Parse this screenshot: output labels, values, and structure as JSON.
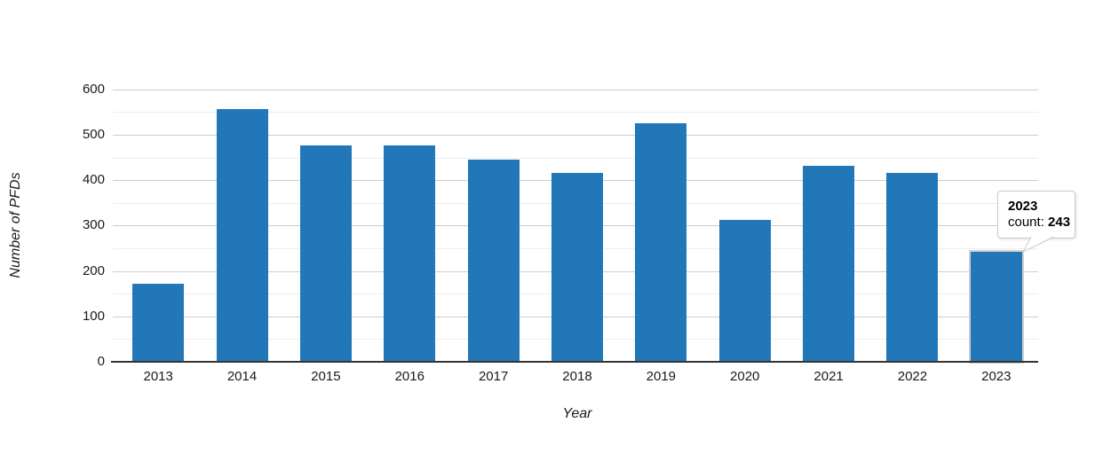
{
  "chart": {
    "y_axis_title": "Number of PFDs",
    "x_axis_title": "Year",
    "tooltip": {
      "title": "2023",
      "label": "count:",
      "value": "243"
    }
  },
  "chart_data": {
    "type": "bar",
    "categories": [
      "2013",
      "2014",
      "2015",
      "2016",
      "2017",
      "2018",
      "2019",
      "2020",
      "2021",
      "2022",
      "2023"
    ],
    "values": [
      172,
      557,
      476,
      476,
      446,
      416,
      525,
      313,
      431,
      416,
      243
    ],
    "title": "",
    "xlabel": "Year",
    "ylabel": "Number of PFDs",
    "ylim": [
      0,
      600
    ],
    "yticks": [
      0,
      100,
      200,
      300,
      400,
      500,
      600
    ],
    "minor_grid_step": 50,
    "grid": "on",
    "legend": "none",
    "bar_color": "#2177b8",
    "hovered_index": 10,
    "hover_outline_color": "#cfcfcf",
    "major_grid_color": "#cccccc",
    "minor_grid_color": "#ededed",
    "axis_line_color": "#333333",
    "tooltip_for": {
      "category": "2023",
      "count": 243
    }
  }
}
